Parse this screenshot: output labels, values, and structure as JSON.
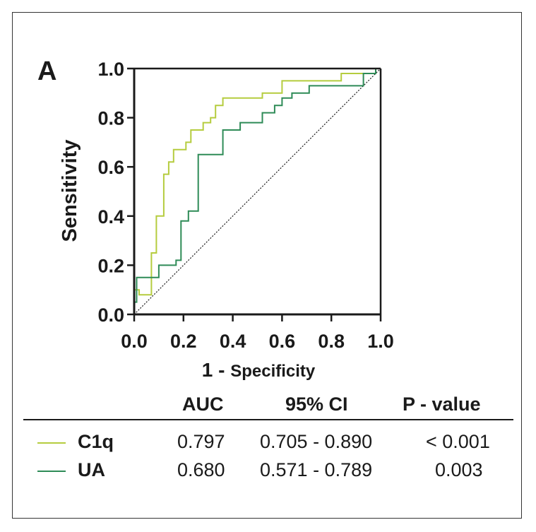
{
  "panel_label": "A",
  "chart_data": {
    "type": "line",
    "xlabel_main": "1 - ",
    "xlabel_small": "Specificity",
    "ylabel": "Sensitivity",
    "xlim": [
      0,
      1
    ],
    "ylim": [
      0,
      1
    ],
    "xticks": [
      "0.0",
      "0.2",
      "0.4",
      "0.6",
      "0.8",
      "1.0"
    ],
    "yticks": [
      "0.0",
      "0.2",
      "0.4",
      "0.6",
      "0.8",
      "1.0"
    ],
    "reference_line": {
      "x": [
        0,
        1
      ],
      "y": [
        0,
        1
      ],
      "style": "dotted"
    },
    "series": [
      {
        "name": "C1q",
        "color": "#b5cc3e",
        "x": [
          0,
          0,
          0.02,
          0.02,
          0.07,
          0.07,
          0.09,
          0.09,
          0.12,
          0.12,
          0.14,
          0.14,
          0.16,
          0.16,
          0.21,
          0.21,
          0.23,
          0.23,
          0.28,
          0.28,
          0.31,
          0.31,
          0.33,
          0.33,
          0.36,
          0.36,
          0.52,
          0.52,
          0.6,
          0.6,
          0.84,
          0.84,
          0.98,
          0.98,
          1.0
        ],
        "y": [
          0,
          0.1,
          0.1,
          0.08,
          0.08,
          0.25,
          0.25,
          0.4,
          0.4,
          0.57,
          0.57,
          0.62,
          0.62,
          0.67,
          0.67,
          0.7,
          0.7,
          0.75,
          0.75,
          0.78,
          0.78,
          0.8,
          0.8,
          0.85,
          0.85,
          0.88,
          0.88,
          0.9,
          0.9,
          0.95,
          0.95,
          0.98,
          0.98,
          1.0,
          1.0
        ]
      },
      {
        "name": "UA",
        "color": "#2e8b57",
        "x": [
          0,
          0,
          0.01,
          0.01,
          0.1,
          0.1,
          0.17,
          0.17,
          0.19,
          0.19,
          0.22,
          0.22,
          0.26,
          0.26,
          0.36,
          0.36,
          0.43,
          0.43,
          0.52,
          0.52,
          0.57,
          0.57,
          0.6,
          0.6,
          0.64,
          0.64,
          0.71,
          0.71,
          0.93,
          0.93,
          0.98,
          0.98,
          1.0
        ],
        "y": [
          0,
          0.05,
          0.05,
          0.15,
          0.15,
          0.2,
          0.2,
          0.22,
          0.22,
          0.38,
          0.38,
          0.42,
          0.42,
          0.65,
          0.65,
          0.75,
          0.75,
          0.78,
          0.78,
          0.82,
          0.82,
          0.85,
          0.85,
          0.88,
          0.88,
          0.9,
          0.9,
          0.93,
          0.93,
          0.98,
          0.98,
          1.0,
          1.0
        ]
      }
    ]
  },
  "stats_table": {
    "headers": {
      "auc": "AUC",
      "ci": "95% CI",
      "p": "P - value"
    },
    "rows": [
      {
        "name": "C1q",
        "auc": "0.797",
        "ci": "0.705 - 0.890",
        "p": "< 0.001",
        "color": "#b5cc3e"
      },
      {
        "name": "UA",
        "auc": "0.680",
        "ci": "0.571 - 0.789",
        "p": "0.003",
        "color": "#2e8b57"
      }
    ]
  }
}
